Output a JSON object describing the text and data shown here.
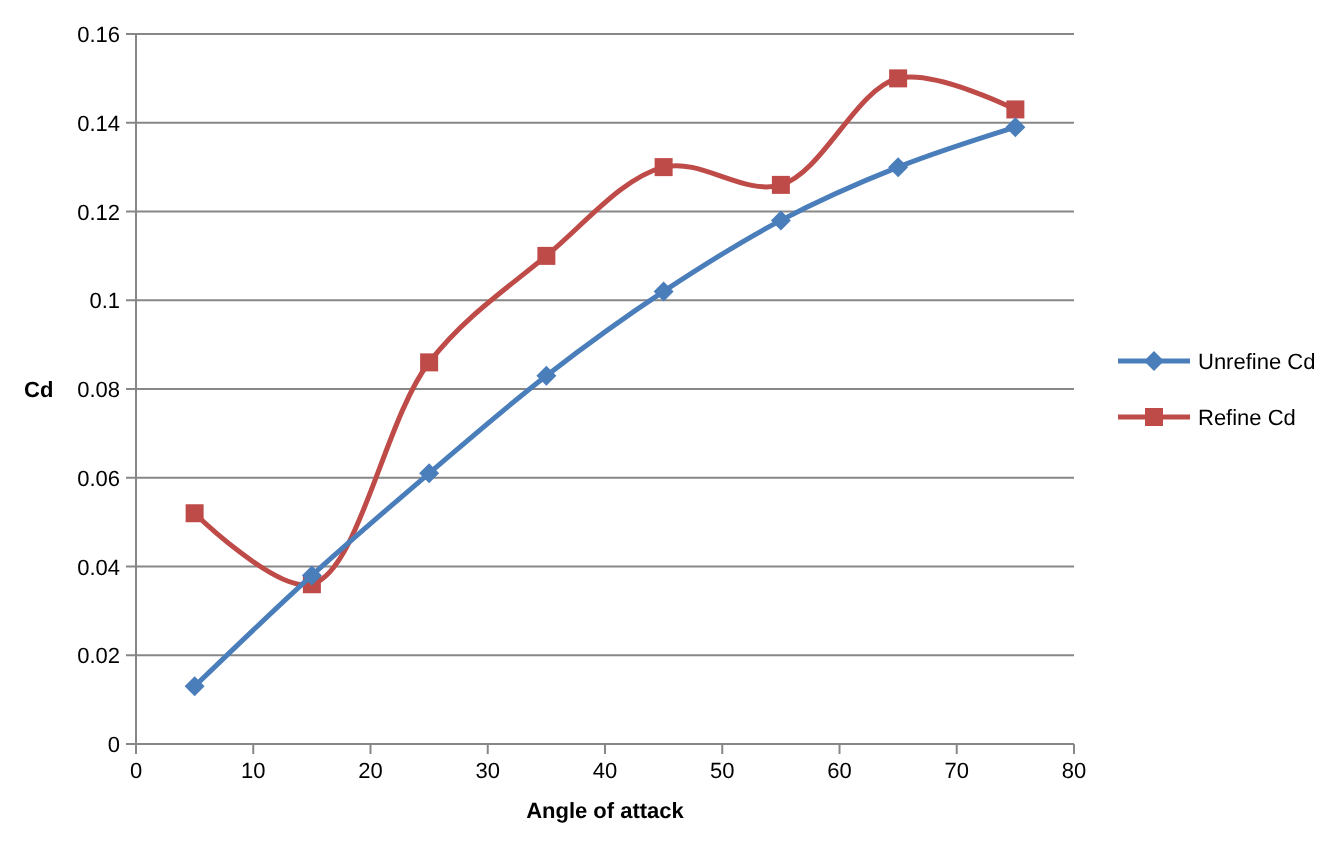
{
  "chart_data": {
    "type": "line",
    "xlabel": "Angle of attack",
    "ylabel": "Cd",
    "x": [
      5,
      15,
      25,
      35,
      45,
      55,
      65,
      75
    ],
    "series": [
      {
        "name": "Unrefine Cd",
        "color": "#4a7ebb",
        "marker": "diamond",
        "values": [
          0.013,
          0.038,
          0.061,
          0.083,
          0.102,
          0.118,
          0.13,
          0.139
        ]
      },
      {
        "name": "Refine Cd",
        "color": "#be4b48",
        "marker": "square",
        "values": [
          0.052,
          0.036,
          0.086,
          0.11,
          0.13,
          0.126,
          0.15,
          0.143
        ]
      }
    ],
    "xlim": [
      0,
      80
    ],
    "xticks": [
      0,
      10,
      20,
      30,
      40,
      50,
      60,
      70,
      80
    ],
    "ylim": [
      0,
      0.16
    ],
    "yticks": [
      0,
      0.02,
      0.04,
      0.06,
      0.08,
      0.1,
      0.12,
      0.14,
      0.16
    ],
    "grid": "y",
    "legend": "right",
    "line_style": "solid"
  }
}
